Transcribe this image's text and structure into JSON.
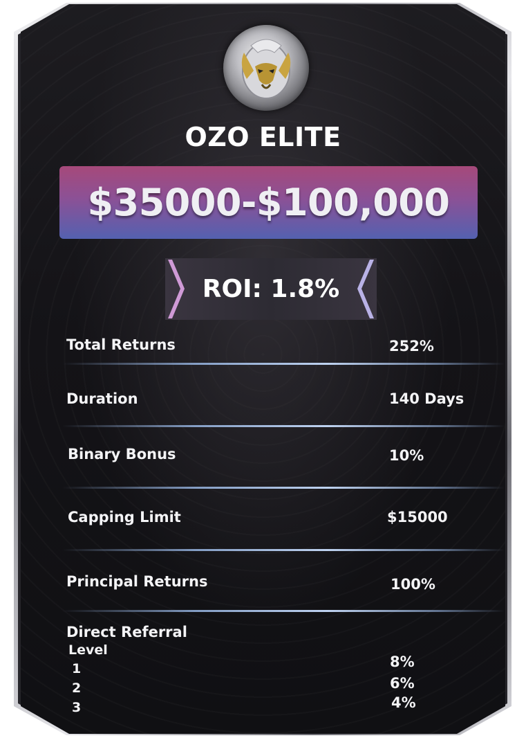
{
  "plan": {
    "name": "OZO ELITE",
    "price_range": "$35000-$100,000",
    "roi": "ROI: 1.8%"
  },
  "details": [
    {
      "label": "Total Returns",
      "value": "252%"
    },
    {
      "label": "Duration",
      "value": "140 Days"
    },
    {
      "label": "Binary Bonus",
      "value": "10%"
    },
    {
      "label": "Capping Limit",
      "value": "$15000"
    },
    {
      "label": "Principal Returns",
      "value": "100%"
    }
  ],
  "referral": {
    "label": "Direct Referral",
    "level_header": "Level",
    "levels": [
      {
        "level": "1",
        "value": "8%"
      },
      {
        "level": "2",
        "value": "6%"
      },
      {
        "level": "3",
        "value": "4%"
      }
    ]
  },
  "icons": {
    "logo": "dragon-emblem-icon"
  },
  "colors": {
    "card_background": "#141317",
    "banner_top": "#a6497a",
    "banner_bottom": "#5461b0",
    "text": "#ffffff",
    "separator": "#bed2f0"
  }
}
